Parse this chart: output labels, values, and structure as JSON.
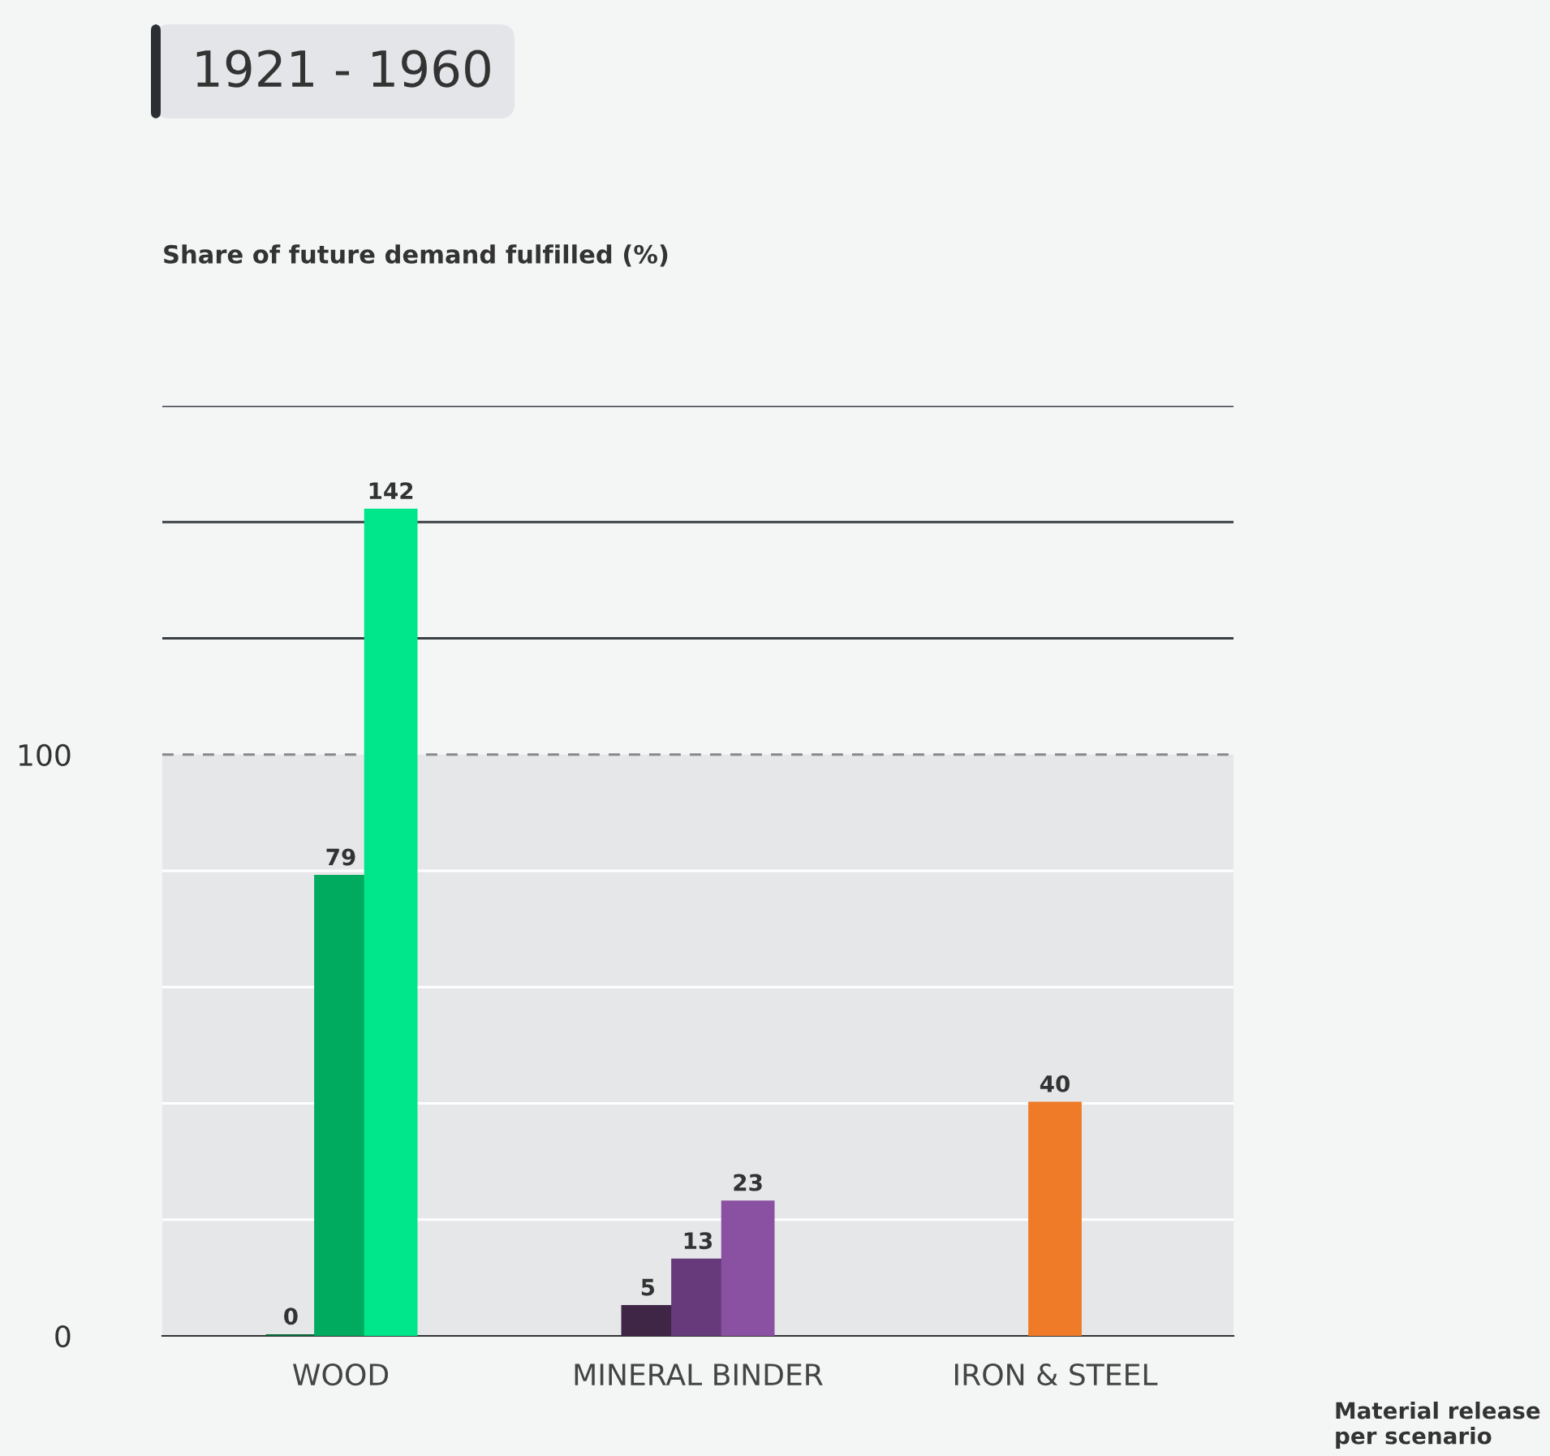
{
  "chart_data": {
    "type": "bar",
    "title": "1921 - 1960",
    "annotations": [
      "Share of future demand fulfilled (%)"
    ],
    "xlabel": "Material release per scenario",
    "categories": [
      "WOOD",
      "MINERAL BINDER",
      "IRON & STEEL"
    ],
    "series": [
      {
        "colors": [
          "#0b6b3c",
          "#3f2647",
          null
        ],
        "values": [
          0,
          5,
          null
        ]
      },
      {
        "colors": [
          "#00ab60",
          "#673b7b",
          "#ef7a28"
        ],
        "values": [
          79,
          13,
          40
        ]
      },
      {
        "colors": [
          "#00e68a",
          "#8a50a1",
          null
        ],
        "values": [
          142,
          23,
          null
        ]
      }
    ],
    "ylim": [
      0,
      160
    ],
    "yticks": [
      0,
      {
        "value": 20,
        "label": null
      },
      {
        "value": 40,
        "label": null
      },
      {
        "value": 60,
        "label": null
      },
      {
        "value": 80,
        "label": null
      },
      100,
      {
        "value": 120,
        "label": null
      },
      {
        "value": 140,
        "label": null
      },
      {
        "value": 160,
        "label": null
      }
    ],
    "grid": "y",
    "bands": [
      {
        "axis": "y",
        "from": 0,
        "to": 100,
        "color": "#e6e7e9"
      }
    ],
    "ref_lines": [
      {
        "axis": "y",
        "value": 100,
        "color": "#888888",
        "line_style": "dashed"
      }
    ],
    "data_labels": true
  }
}
